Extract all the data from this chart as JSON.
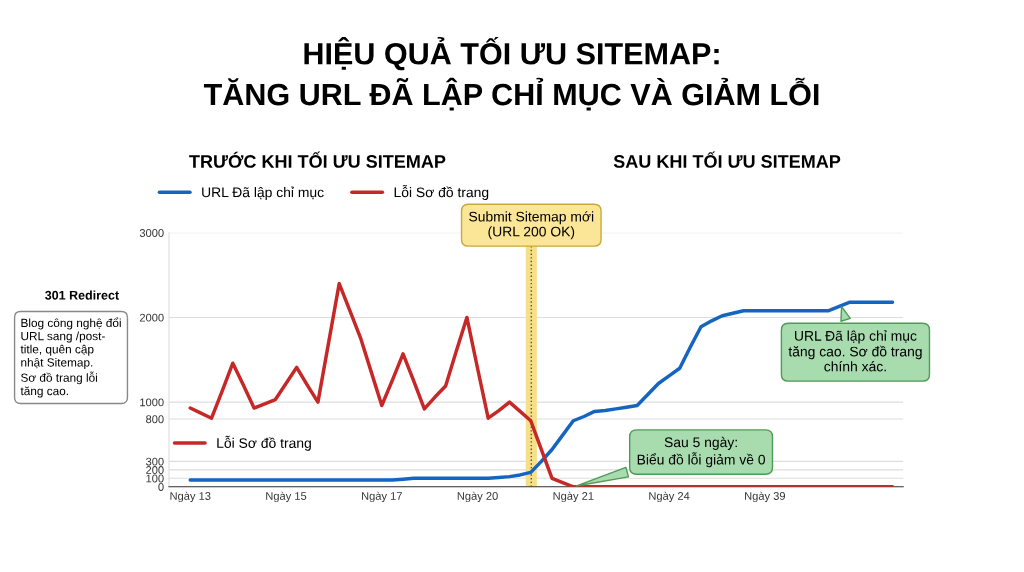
{
  "chart_data": {
    "type": "line",
    "title": "HIỆU QUẢ TỐI ƯU SITEMAP:\nTĂNG URL ĐÃ LẬP CHỈ MỤC VÀ GIẢM LỖI",
    "categories": [
      "Ngày 13",
      null,
      null,
      null,
      null,
      null,
      null,
      null,
      null,
      "Ngày 15",
      null,
      null,
      null,
      null,
      null,
      null,
      null,
      null,
      "Ngày 17",
      null,
      null,
      null,
      null,
      null,
      null,
      null,
      null,
      "Ngày 20",
      null,
      null,
      null,
      null,
      null,
      null,
      null,
      null,
      "Ngày 21",
      null,
      null,
      null,
      null,
      null,
      null,
      null,
      null,
      "Ngày 24",
      null,
      null,
      null,
      null,
      null,
      null,
      null,
      null,
      "Ngày 39",
      null,
      null,
      null,
      null,
      null,
      null,
      null,
      null,
      null,
      null,
      null,
      null
    ],
    "ylim": [
      0,
      3000
    ],
    "yticks": [
      0,
      100,
      200,
      300,
      800,
      1000,
      2000,
      3000
    ],
    "grid": "y",
    "legend": "top left",
    "marker": "none",
    "line_style": "solid",
    "series": [
      {
        "name": "URL Đã lập chỉ mục",
        "color": "#1565c0",
        "values": [
          80,
          80,
          80,
          80,
          80,
          80,
          80,
          80,
          80,
          80,
          80,
          80,
          80,
          80,
          80,
          80,
          80,
          80,
          80,
          80,
          90,
          100,
          100,
          100,
          100,
          100,
          100,
          100,
          100,
          110,
          120,
          140,
          170,
          300,
          440,
          610,
          780,
          830,
          890,
          900,
          920,
          940,
          960,
          1090,
          1220,
          1310,
          1400,
          1650,
          1890,
          1960,
          2020,
          2050,
          2080,
          2080,
          2080,
          2080,
          2080,
          2080,
          2080,
          2080,
          2080,
          2130,
          2180,
          2180,
          2180,
          2180,
          2180
        ]
      },
      {
        "name": "Lỗi Sơ đồ trang",
        "color": "#c62828",
        "values": [
          930,
          870,
          810,
          1130,
          1460,
          1200,
          930,
          980,
          1030,
          1220,
          1410,
          1200,
          1000,
          1700,
          2400,
          2080,
          1760,
          1360,
          960,
          1260,
          1570,
          1250,
          920,
          1060,
          1190,
          1600,
          2000,
          1400,
          810,
          900,
          1000,
          890,
          780,
          440,
          100,
          50,
          0,
          0,
          0,
          0,
          0,
          0,
          0,
          0,
          0,
          0,
          0,
          0,
          0,
          0,
          0,
          0,
          0,
          0,
          0,
          0,
          0,
          0,
          0,
          0,
          0,
          0,
          0,
          0,
          0,
          0,
          0
        ]
      }
    ],
    "annotations": [
      "TRƯỚC KHI TỐI ƯU SITEMAP",
      "SAU KHI TỐI ƯU SITEMAP",
      "301 Redirect",
      "Blog công nghệ đổi\nURL sang /post-\ntitle, quên cập\nnhật Sitemap.\nSơ đồ trang lỗi\ntăng cao.",
      "Lỗi Sơ đồ trang",
      "Submit Sitemap mới\n(URL 200 OK)",
      {
        "text": "Sau 5 ngày:\nBiểu đồ lỗi giảm về 0",
        "x": "Ngày 21",
        "y": 0
      },
      "URL Đã lập chỉ mục\ntăng cao. Sơ đồ trang\nchính xác."
    ]
  }
}
